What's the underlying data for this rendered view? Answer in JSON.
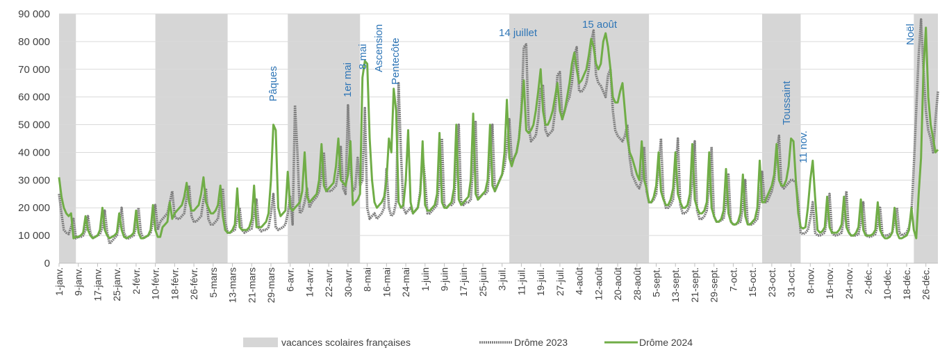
{
  "chart_data": {
    "type": "line",
    "categories": [
      "1-janv.",
      null,
      null,
      null,
      null,
      null,
      null,
      null,
      "9-janv.",
      null,
      null,
      null,
      null,
      null,
      null,
      null,
      "17-janv.",
      null,
      null,
      null,
      null,
      null,
      null,
      null,
      "25-janv.",
      null,
      null,
      null,
      null,
      null,
      null,
      null,
      "2-févr.",
      null,
      null,
      null,
      null,
      null,
      null,
      null,
      "10-févr.",
      null,
      null,
      null,
      null,
      null,
      null,
      null,
      "18-févr.",
      null,
      null,
      null,
      null,
      null,
      null,
      null,
      "26-févr.",
      null,
      null,
      null,
      null,
      null,
      null,
      null,
      "5-mars",
      null,
      null,
      null,
      null,
      null,
      null,
      null,
      "13-mars",
      null,
      null,
      null,
      null,
      null,
      null,
      null,
      "21-mars",
      null,
      null,
      null,
      null,
      null,
      null,
      null,
      "29-mars",
      null,
      null,
      null,
      null,
      null,
      null,
      null,
      "6-avr.",
      null,
      null,
      null,
      null,
      null,
      null,
      null,
      "14-avr.",
      null,
      null,
      null,
      null,
      null,
      null,
      null,
      "22-avr.",
      null,
      null,
      null,
      null,
      null,
      null,
      null,
      "30-avr.",
      null,
      null,
      null,
      null,
      null,
      null,
      null,
      "8-mai",
      null,
      null,
      null,
      null,
      null,
      null,
      null,
      "16-mai",
      null,
      null,
      null,
      null,
      null,
      null,
      null,
      "24-mai",
      null,
      null,
      null,
      null,
      null,
      null,
      null,
      "1-juin",
      null,
      null,
      null,
      null,
      null,
      null,
      null,
      "9-juin",
      null,
      null,
      null,
      null,
      null,
      null,
      null,
      "17-juin",
      null,
      null,
      null,
      null,
      null,
      null,
      null,
      "25-juin",
      null,
      null,
      null,
      null,
      null,
      null,
      null,
      "3-juil.",
      null,
      null,
      null,
      null,
      null,
      null,
      null,
      "11-juil.",
      null,
      null,
      null,
      null,
      null,
      null,
      null,
      "19-juil.",
      null,
      null,
      null,
      null,
      null,
      null,
      null,
      "27-juil.",
      null,
      null,
      null,
      null,
      null,
      null,
      null,
      "4-août",
      null,
      null,
      null,
      null,
      null,
      null,
      null,
      "12-août",
      null,
      null,
      null,
      null,
      null,
      null,
      null,
      "20-août",
      null,
      null,
      null,
      null,
      null,
      null,
      null,
      "28-août",
      null,
      null,
      null,
      null,
      null,
      null,
      null,
      "5-sept.",
      null,
      null,
      null,
      null,
      null,
      null,
      null,
      "13-sept.",
      null,
      null,
      null,
      null,
      null,
      null,
      null,
      "21-sept.",
      null,
      null,
      null,
      null,
      null,
      null,
      null,
      "29-sept.",
      null,
      null,
      null,
      null,
      null,
      null,
      null,
      "7-oct.",
      null,
      null,
      null,
      null,
      null,
      null,
      null,
      "15-oct.",
      null,
      null,
      null,
      null,
      null,
      null,
      null,
      "23-oct.",
      null,
      null,
      null,
      null,
      null,
      null,
      null,
      "31-oct.",
      null,
      null,
      null,
      null,
      null,
      null,
      null,
      "8-nov.",
      null,
      null,
      null,
      null,
      null,
      null,
      null,
      "16-nov.",
      null,
      null,
      null,
      null,
      null,
      null,
      null,
      "24-nov.",
      null,
      null,
      null,
      null,
      null,
      null,
      null,
      "2-déc.",
      null,
      null,
      null,
      null,
      null,
      null,
      null,
      "10-déc.",
      null,
      null,
      null,
      null,
      null,
      null,
      null,
      "18-déc.",
      null,
      null,
      null,
      null,
      null,
      null,
      null,
      "26-déc.",
      null,
      null,
      null,
      null,
      null
    ],
    "shading": {
      "name": "vacances scolaires françaises",
      "color": "#d6d6d6",
      "ranges": [
        [
          0,
          7
        ],
        [
          40,
          70
        ],
        [
          95,
          125
        ],
        [
          187,
          245
        ],
        [
          292,
          308
        ],
        [
          355,
          365
        ]
      ]
    },
    "series": [
      {
        "name": "Drôme 2023",
        "color": "#7f7f7f",
        "values": [
          25000,
          18000,
          12000,
          11000,
          10500,
          13000,
          16000,
          9000,
          9500,
          9500,
          10000,
          12000,
          17000,
          11000,
          9000,
          9500,
          10000,
          10500,
          13000,
          19000,
          11000,
          7000,
          8000,
          9000,
          10000,
          14000,
          20000,
          11000,
          9000,
          9000,
          9500,
          10000,
          13000,
          20000,
          11000,
          9000,
          9500,
          10000,
          11000,
          15000,
          21000,
          12000,
          15000,
          16000,
          17000,
          18000,
          22000,
          26000,
          17000,
          16000,
          16000,
          17000,
          18000,
          24000,
          28000,
          17000,
          15000,
          15000,
          16000,
          17000,
          23000,
          27000,
          16000,
          14000,
          14000,
          15000,
          16000,
          22000,
          27000,
          15000,
          11000,
          11000,
          11500,
          12000,
          16000,
          20000,
          12000,
          11000,
          11500,
          12000,
          12500,
          18000,
          23000,
          12500,
          11500,
          12000,
          12000,
          13000,
          18000,
          25000,
          13000,
          12000,
          12500,
          13000,
          14000,
          18000,
          24000,
          14000,
          57000,
          40000,
          18000,
          19000,
          22000,
          27000,
          20000,
          22000,
          23000,
          24000,
          26000,
          32000,
          40000,
          26000,
          26000,
          26000,
          27000,
          28000,
          33000,
          42000,
          27000,
          25000,
          57000,
          35000,
          26000,
          27000,
          38000,
          28000,
          30000,
          56000,
          20000,
          16000,
          17000,
          18000,
          16000,
          17000,
          18000,
          20000,
          34000,
          20000,
          17000,
          18000,
          22000,
          65000,
          40000,
          20000,
          18000,
          19000,
          20000,
          18000,
          19000,
          20000,
          26000,
          39000,
          30000,
          18000,
          18000,
          19000,
          20000,
          21000,
          30000,
          45000,
          21000,
          20000,
          21000,
          21000,
          22000,
          35000,
          50000,
          22000,
          21000,
          22000,
          22000,
          23000,
          36000,
          51000,
          23000,
          24000,
          25000,
          25000,
          26000,
          38000,
          50000,
          26000,
          28000,
          30000,
          32000,
          35000,
          42000,
          52000,
          37000,
          38000,
          40000,
          45000,
          55000,
          78000,
          79000,
          50000,
          44000,
          45000,
          46000,
          52000,
          63000,
          64000,
          48000,
          46000,
          47000,
          48000,
          55000,
          68000,
          69000,
          52000,
          55000,
          58000,
          60000,
          65000,
          75000,
          78000,
          62000,
          62000,
          63000,
          65000,
          70000,
          80000,
          84000,
          68000,
          65000,
          64000,
          62000,
          60000,
          68000,
          70000,
          55000,
          48000,
          46000,
          45000,
          44000,
          46000,
          50000,
          38000,
          32000,
          30000,
          28000,
          27000,
          30000,
          42000,
          26000,
          22000,
          22000,
          23000,
          25000,
          35000,
          45000,
          24000,
          20000,
          20000,
          21000,
          23000,
          33000,
          45000,
          21000,
          18000,
          18000,
          19000,
          21000,
          30000,
          44000,
          19000,
          16000,
          16000,
          17000,
          19000,
          28000,
          42000,
          17000,
          15000,
          15000,
          15500,
          16000,
          22000,
          32000,
          15000,
          14000,
          14000,
          14500,
          15000,
          20000,
          30000,
          14500,
          14000,
          14000,
          15000,
          16000,
          22000,
          33000,
          22000,
          22000,
          24000,
          26000,
          30000,
          40000,
          46000,
          28000,
          27000,
          28000,
          29000,
          30000,
          30000,
          29000,
          22000,
          11000,
          10500,
          11000,
          12000,
          16000,
          22000,
          11000,
          10000,
          10000,
          10500,
          11000,
          17000,
          25000,
          11000,
          10000,
          10000,
          10500,
          11000,
          17000,
          26000,
          11000,
          10000,
          10000,
          10000,
          10500,
          15000,
          22000,
          10500,
          9500,
          9500,
          10000,
          10500,
          14000,
          20000,
          10000,
          10000,
          10000,
          10500,
          11000,
          15000,
          20000,
          11000,
          10000,
          10500,
          11000,
          13000,
          18000,
          35000,
          55000,
          75000,
          88000,
          70000,
          55000,
          48000,
          45000,
          40000,
          52000,
          62000
        ]
      },
      {
        "name": "Drôme 2024",
        "color": "#70ad47",
        "values": [
          31000,
          24000,
          20000,
          18000,
          17000,
          18000,
          9000,
          9500,
          9500,
          10000,
          11000,
          17000,
          12000,
          10000,
          9000,
          9500,
          10000,
          12000,
          20000,
          12000,
          10000,
          9000,
          9500,
          10000,
          11000,
          18000,
          12000,
          9500,
          9000,
          9500,
          10000,
          11000,
          19000,
          11000,
          9000,
          9000,
          9500,
          10000,
          12000,
          21000,
          12000,
          9500,
          9500,
          13000,
          14000,
          15000,
          22000,
          16000,
          18000,
          19000,
          20000,
          21000,
          24000,
          29000,
          22000,
          19000,
          19000,
          20000,
          21000,
          25000,
          31000,
          22000,
          20000,
          18000,
          18000,
          19000,
          21000,
          28000,
          17000,
          12000,
          11000,
          11000,
          12000,
          14000,
          27000,
          13000,
          12000,
          12000,
          12000,
          13000,
          16000,
          28000,
          13000,
          13000,
          13000,
          14000,
          15000,
          18000,
          30000,
          50000,
          48000,
          20000,
          17000,
          18000,
          19000,
          33000,
          20000,
          19000,
          20000,
          21000,
          22000,
          26000,
          40000,
          24000,
          22000,
          23000,
          24000,
          25000,
          30000,
          43000,
          28000,
          26000,
          27000,
          28000,
          29000,
          35000,
          45000,
          30000,
          29000,
          28000,
          32000,
          44000,
          21000,
          22000,
          23000,
          25000,
          67000,
          73000,
          72000,
          45000,
          30000,
          22000,
          20000,
          21000,
          22000,
          24000,
          30000,
          45000,
          40000,
          63000,
          55000,
          22000,
          20000,
          21000,
          30000,
          48000,
          22000,
          18000,
          19000,
          20000,
          25000,
          44000,
          21000,
          19000,
          19000,
          20000,
          21000,
          25000,
          47000,
          22000,
          20000,
          20000,
          21000,
          22000,
          27000,
          50000,
          23000,
          21000,
          22000,
          23000,
          24000,
          30000,
          54000,
          25000,
          23000,
          24000,
          25000,
          26000,
          30000,
          50000,
          28000,
          26000,
          28000,
          30000,
          32000,
          40000,
          59000,
          38000,
          35000,
          38000,
          40000,
          45000,
          55000,
          66000,
          48000,
          47000,
          48000,
          50000,
          55000,
          62000,
          70000,
          55000,
          50000,
          50000,
          52000,
          55000,
          60000,
          65000,
          55000,
          52000,
          55000,
          60000,
          65000,
          72000,
          76000,
          70000,
          65000,
          66000,
          68000,
          70000,
          75000,
          81000,
          78000,
          72000,
          70000,
          72000,
          80000,
          83000,
          78000,
          70000,
          60000,
          58000,
          58000,
          62000,
          65000,
          55000,
          45000,
          40000,
          38000,
          35000,
          32000,
          30000,
          44000,
          30000,
          27000,
          22000,
          22000,
          24000,
          28000,
          40000,
          26000,
          23000,
          21000,
          21000,
          23000,
          27000,
          40000,
          25000,
          22000,
          20000,
          20000,
          21000,
          25000,
          43000,
          23000,
          20000,
          18000,
          18000,
          19000,
          22000,
          40000,
          20000,
          17000,
          15000,
          15000,
          16000,
          19000,
          34000,
          18000,
          15000,
          14000,
          14000,
          15000,
          18000,
          32000,
          17000,
          14000,
          14000,
          15000,
          16000,
          20000,
          37000,
          22000,
          22000,
          24000,
          26000,
          28000,
          32000,
          43000,
          30000,
          28000,
          28000,
          30000,
          35000,
          45000,
          44000,
          30000,
          18000,
          13000,
          12500,
          13000,
          20000,
          30000,
          37000,
          24000,
          12000,
          11000,
          11500,
          13000,
          24000,
          13000,
          11000,
          11000,
          11000,
          12000,
          14000,
          24000,
          13000,
          11000,
          10000,
          10000,
          11000,
          13000,
          23000,
          12000,
          10000,
          10000,
          10000,
          10500,
          12000,
          22000,
          12000,
          10000,
          9000,
          9000,
          9500,
          11000,
          20000,
          11000,
          9000,
          9000,
          9500,
          10000,
          12000,
          20000,
          12000,
          9000,
          25000,
          38000,
          70000,
          85000,
          60000,
          50000,
          45000,
          40000,
          41000
        ]
      }
    ],
    "ylim": [
      0,
      90000
    ],
    "yticks": [
      0,
      {
        "value": 10000,
        "label": "10 000"
      },
      {
        "value": 20000,
        "label": "20 000"
      },
      {
        "value": 30000,
        "label": "30 000"
      },
      {
        "value": 40000,
        "label": "40 000"
      },
      {
        "value": 50000,
        "label": "50 000"
      },
      {
        "value": 60000,
        "label": "60 000"
      },
      {
        "value": 70000,
        "label": "70 000"
      },
      {
        "value": 80000,
        "label": "80 000"
      },
      {
        "value": 90000,
        "label": "90 000"
      }
    ],
    "grid": true,
    "legend": "bottom",
    "annotations": [
      "Pâques",
      "1er mai",
      "8 mai",
      "Ascension",
      "Pentecôte",
      "14 juillet",
      "15 août",
      "Toussaint",
      "11 nov.",
      "Noël"
    ]
  }
}
